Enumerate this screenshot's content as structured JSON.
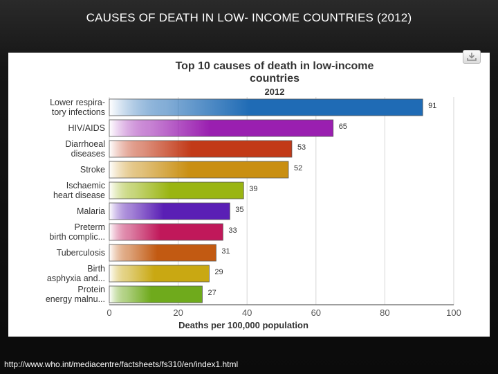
{
  "slide": {
    "title": "CAUSES OF DEATH IN LOW- INCOME COUNTRIES (2012)",
    "source_url": "http://www.who.int/mediacentre/factsheets/fs310/en/index1.html"
  },
  "chart_data": {
    "type": "bar",
    "orientation": "horizontal",
    "title": "Top 10 causes of death in low-income countries",
    "subtitle": "2012",
    "xlabel": "Deaths per 100,000 population",
    "ylabel": "",
    "xlim": [
      0,
      100
    ],
    "xticks": [
      0,
      20,
      40,
      60,
      80,
      100
    ],
    "grid": true,
    "categories": [
      [
        "Lower respira-",
        "tory infections"
      ],
      [
        "HIV/AIDS"
      ],
      [
        "Diarrhoeal",
        "diseases"
      ],
      [
        "Stroke"
      ],
      [
        "Ischaemic",
        "heart disease"
      ],
      [
        "Malaria"
      ],
      [
        "Preterm",
        "birth complic..."
      ],
      [
        "Tuberculosis"
      ],
      [
        "Birth",
        "asphyxia and..."
      ],
      [
        "Protein",
        "energy malnu..."
      ]
    ],
    "values": [
      91,
      65,
      53,
      52,
      39,
      35,
      33,
      31,
      29,
      27
    ],
    "colors": [
      "#1f6bb5",
      "#9a1fb0",
      "#c23a18",
      "#c98f12",
      "#9ab512",
      "#5a1fb5",
      "#c0185a",
      "#c25a12",
      "#c9a812",
      "#6faa1c"
    ]
  }
}
